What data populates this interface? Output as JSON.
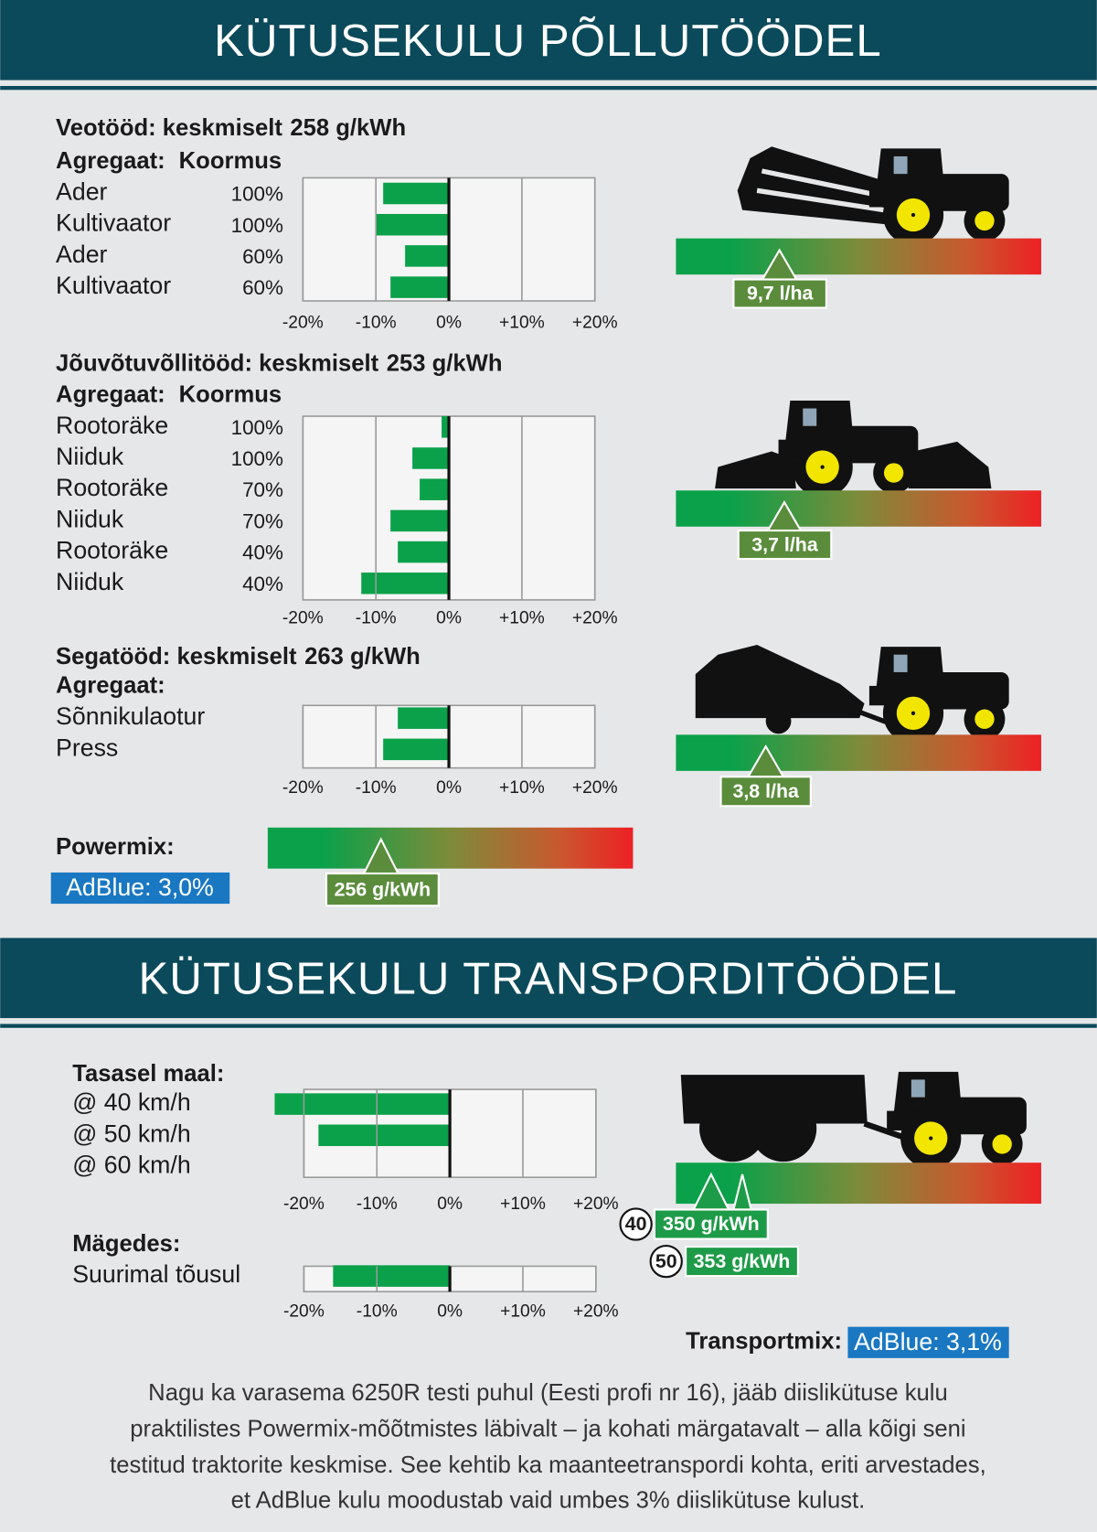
{
  "headers": [
    "KÜTUSEKULU PÕLLUTÖÖDEL",
    "KÜTUSEKULU TRANSPORDITÖÖDEL"
  ],
  "chart_data": [
    {
      "type": "bar",
      "orientation": "horizontal",
      "title": "Veotööd: keskmiselt",
      "title_value": "258 g/kWh",
      "column_headers": [
        "Agregaat:",
        "Koormus"
      ],
      "categories": [
        "Ader",
        "Kultivaator",
        "Ader",
        "Kultivaator"
      ],
      "loads": [
        "100%",
        "100%",
        "60%",
        "60%"
      ],
      "values": [
        -9,
        -10,
        -6,
        -8
      ],
      "color": "#0aa14a",
      "xlim": [
        -20,
        20
      ],
      "xticks": [
        {
          "value": -20,
          "label": "-20%"
        },
        {
          "value": -10,
          "label": "-10%"
        },
        {
          "value": 0,
          "label": "0%"
        },
        {
          "value": 10,
          "label": "+10%"
        },
        {
          "value": 20,
          "label": "+20%"
        }
      ],
      "grid": true
    },
    {
      "type": "bar",
      "orientation": "horizontal",
      "title": "Jõuvõtuvõllitööd: keskmiselt",
      "title_value": "253 g/kWh",
      "column_headers": [
        "Agregaat:",
        "Koormus"
      ],
      "categories": [
        "Rootoräke",
        "Niiduk",
        "Rootoräke",
        "Niiduk",
        "Rootoräke",
        "Niiduk"
      ],
      "loads": [
        "100%",
        "100%",
        "70%",
        "70%",
        "40%",
        "40%"
      ],
      "values": [
        -1,
        -5,
        -4,
        -8,
        -7,
        -12
      ],
      "color": "#0aa14a",
      "xlim": [
        -20,
        20
      ],
      "xticks": [
        {
          "value": -20,
          "label": "-20%"
        },
        {
          "value": -10,
          "label": "-10%"
        },
        {
          "value": 0,
          "label": "0%"
        },
        {
          "value": 10,
          "label": "+10%"
        },
        {
          "value": 20,
          "label": "+20%"
        }
      ],
      "grid": true
    },
    {
      "type": "bar",
      "orientation": "horizontal",
      "title": "Segatööd: keskmiselt",
      "title_value": "263 g/kWh",
      "column_headers": [
        "Agregaat:"
      ],
      "categories": [
        "Sõnnikulaotur",
        "Press"
      ],
      "values": [
        -7,
        -9
      ],
      "color": "#0aa14a",
      "xlim": [
        -20,
        20
      ],
      "xticks": [
        {
          "value": -20,
          "label": "-20%"
        },
        {
          "value": -10,
          "label": "-10%"
        },
        {
          "value": 0,
          "label": "0%"
        },
        {
          "value": 10,
          "label": "+10%"
        },
        {
          "value": 20,
          "label": "+20%"
        }
      ],
      "grid": true
    },
    {
      "type": "bar",
      "orientation": "horizontal",
      "title": "Tasasel maal:",
      "categories": [
        "@ 40 km/h",
        "@ 50 km/h",
        "@ 60 km/h"
      ],
      "values": [
        -24,
        -18,
        null
      ],
      "color": "#0aa14a",
      "xlim": [
        -20,
        20
      ],
      "xticks": [
        {
          "value": -20,
          "label": "-20%"
        },
        {
          "value": -10,
          "label": "-10%"
        },
        {
          "value": 0,
          "label": "0%"
        },
        {
          "value": 10,
          "label": "+10%"
        },
        {
          "value": 20,
          "label": "+20%"
        }
      ],
      "grid": true
    },
    {
      "type": "bar",
      "orientation": "horizontal",
      "title": "Mägedes:",
      "categories": [
        "Suurimal tõusul"
      ],
      "values": [
        -16
      ],
      "color": "#0aa14a",
      "xlim": [
        -20,
        20
      ],
      "xticks": [
        {
          "value": -20,
          "label": "-20%"
        },
        {
          "value": -10,
          "label": "-10%"
        },
        {
          "value": 0,
          "label": "0%"
        },
        {
          "value": 10,
          "label": "+10%"
        },
        {
          "value": 20,
          "label": "+20%"
        }
      ],
      "grid": true
    }
  ],
  "gauges": [
    {
      "label": "9,7 l/ha"
    },
    {
      "label": "3,7 l/ha"
    },
    {
      "label": "3,8 l/ha"
    },
    {
      "label": "256 g/kWh"
    },
    {
      "markers": [
        {
          "speed": "40",
          "label": "350 g/kWh"
        },
        {
          "speed": "50",
          "label": "353 g/kWh"
        }
      ]
    }
  ],
  "powermix": {
    "label": "Powermix:",
    "adblue": "AdBlue: 3,0%"
  },
  "transportmix": {
    "label": "Transportmix:",
    "adblue": "AdBlue: 3,1%"
  },
  "footnote": [
    "Nagu ka varasema 6250R testi puhul (Eesti profi nr 16), jääb diislikütuse kulu",
    "praktilistes Powermix-mõõtmistes läbivalt – ja kohati märgatavalt – alla kõigi seni",
    "testitud traktorite keskmise. See kehtib ka maanteetranspordi kohta, eriti arvestades,",
    "et AdBlue kulu moodustab vaid umbes 3% diislikütuse kulust."
  ]
}
